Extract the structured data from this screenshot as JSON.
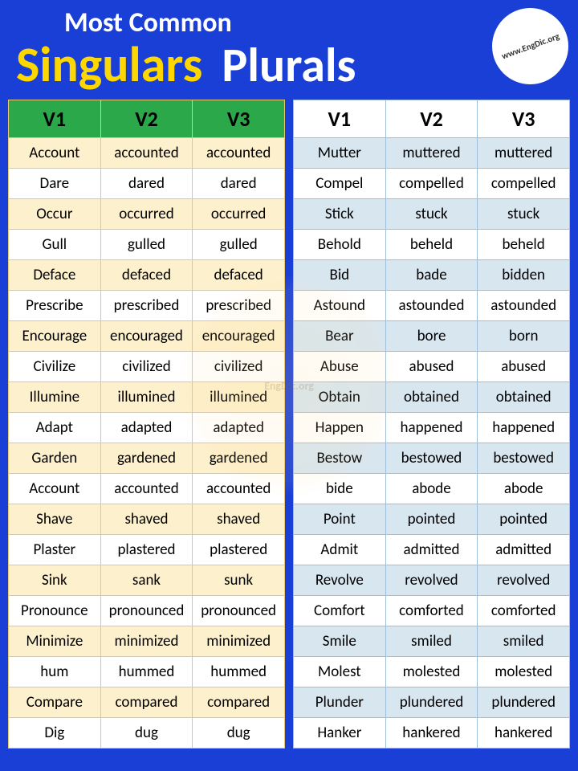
{
  "header": {
    "top": "Most Common",
    "singulars": "Singulars",
    "plurals": "Plurals",
    "logo_text": "www.EngDic.org"
  },
  "watermark": "EngDic.org",
  "left_table": {
    "type": "table",
    "header_bg": "#2ba84a",
    "row_odd_bg": "#fdf0cc",
    "row_even_bg": "#ffffff",
    "border_color": "#e8c870",
    "columns": [
      "V1",
      "V2",
      "V3"
    ],
    "rows": [
      [
        "Account",
        "accounted",
        "accounted"
      ],
      [
        "Dare",
        "dared",
        "dared"
      ],
      [
        "Occur",
        "occurred",
        "occurred"
      ],
      [
        "Gull",
        "gulled",
        "gulled"
      ],
      [
        "Deface",
        "defaced",
        "defaced"
      ],
      [
        "Prescribe",
        "prescribed",
        "prescribed"
      ],
      [
        "Encourage",
        "encouraged",
        "encouraged"
      ],
      [
        "Civilize",
        "civilized",
        "civilized"
      ],
      [
        "Illumine",
        "illumined",
        "illumined"
      ],
      [
        "Adapt",
        "adapted",
        "adapted"
      ],
      [
        "Garden",
        "gardened",
        "gardened"
      ],
      [
        "Account",
        "accounted",
        "accounted"
      ],
      [
        "Shave",
        "shaved",
        "shaved"
      ],
      [
        "Plaster",
        "plastered",
        "plastered"
      ],
      [
        "Sink",
        "sank",
        "sunk"
      ],
      [
        "Pronounce",
        "pronounced",
        "pronounced"
      ],
      [
        "Minimize",
        "minimized",
        "minimized"
      ],
      [
        "hum",
        "hummed",
        "hummed"
      ],
      [
        "Compare",
        "compared",
        "compared"
      ],
      [
        "Dig",
        "dug",
        "dug"
      ]
    ]
  },
  "right_table": {
    "type": "table",
    "header_bg": "#ffffff",
    "row_odd_bg": "#d8e6f0",
    "row_even_bg": "#ffffff",
    "border_color": "#9fbfd9",
    "columns": [
      "V1",
      "V2",
      "V3"
    ],
    "rows": [
      [
        "Mutter",
        "muttered",
        "muttered"
      ],
      [
        "Compel",
        "compelled",
        "compelled"
      ],
      [
        "Stick",
        "stuck",
        "stuck"
      ],
      [
        "Behold",
        "beheld",
        "beheld"
      ],
      [
        "Bid",
        "bade",
        "bidden"
      ],
      [
        "Astound",
        "astounded",
        "astounded"
      ],
      [
        "Bear",
        "bore",
        "born"
      ],
      [
        "Abuse",
        "abused",
        "abused"
      ],
      [
        "Obtain",
        "obtained",
        "obtained"
      ],
      [
        "Happen",
        "happened",
        "happened"
      ],
      [
        "Bestow",
        "bestowed",
        "bestowed"
      ],
      [
        "bide",
        "abode",
        "abode"
      ],
      [
        "Point",
        "pointed",
        "pointed"
      ],
      [
        "Admit",
        "admitted",
        "admitted"
      ],
      [
        "Revolve",
        "revolved",
        "revolved"
      ],
      [
        "Comfort",
        "comforted",
        "comforted"
      ],
      [
        "Smile",
        "smiled",
        "smiled"
      ],
      [
        "Molest",
        "molested",
        "molested"
      ],
      [
        "Plunder",
        "plundered",
        "plundered"
      ],
      [
        "Hanker",
        "hankered",
        "hankered"
      ]
    ]
  },
  "colors": {
    "page_bg": "#1a3fd6",
    "title_accent": "#ffd700",
    "title_white": "#ffffff"
  }
}
